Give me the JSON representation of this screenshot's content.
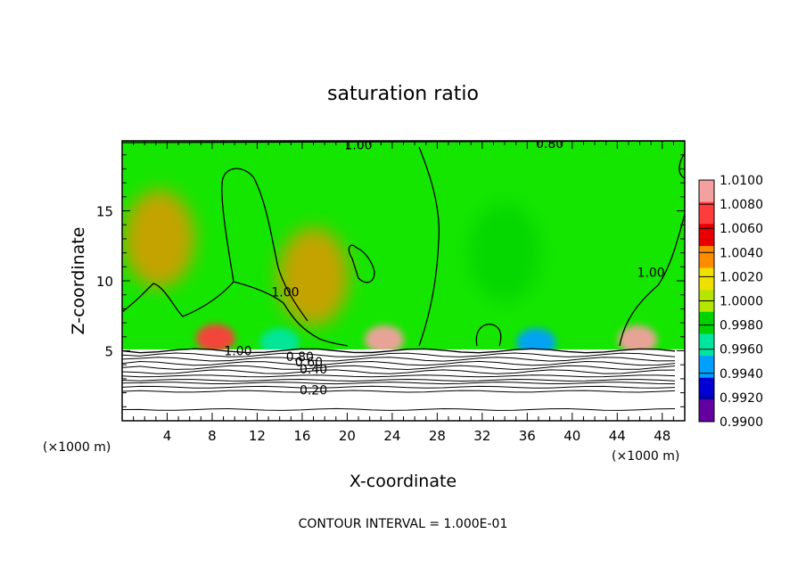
{
  "chart_data": {
    "type": "heatmap",
    "title": "saturation ratio",
    "xlabel": "X-coordinate",
    "ylabel": "Z-coordinate",
    "x_unit_left": "(×1000 m)",
    "x_unit_right": "(×1000 m)",
    "xlim": [
      0,
      50
    ],
    "ylim": [
      0,
      20
    ],
    "x_ticks": [
      4,
      8,
      12,
      16,
      20,
      24,
      28,
      32,
      36,
      40,
      44,
      48
    ],
    "y_ticks": [
      5,
      10,
      15
    ],
    "footnote": "CONTOUR INTERVAL = 1.000E-01",
    "colorbar": {
      "levels": [
        "1.0100",
        "1.0080",
        "1.0060",
        "1.0040",
        "1.0020",
        "1.0000",
        "0.9980",
        "0.9960",
        "0.9940",
        "0.9920",
        "0.9900"
      ],
      "colors": [
        "#f4a0a0",
        "#ff3c3c",
        "#e80000",
        "#ff8c00",
        "#f0e000",
        "#b4e600",
        "#00d200",
        "#00e6a0",
        "#00a0ff",
        "#0000d2",
        "#6400a0"
      ]
    },
    "background_color": "#14e600",
    "contour_labels": [
      {
        "text": "1.00",
        "x": 21.0,
        "y": 19.7
      },
      {
        "text": "0.80",
        "x": 38.0,
        "y": 19.8
      },
      {
        "text": "1.00",
        "x": 14.5,
        "y": 9.2
      },
      {
        "text": "1.00",
        "x": 47.0,
        "y": 10.6
      },
      {
        "text": "1.00",
        "x": 10.3,
        "y": 5.0
      },
      {
        "text": "0.80",
        "x": 15.8,
        "y": 4.6
      },
      {
        "text": "0.60",
        "x": 16.6,
        "y": 4.2
      },
      {
        "text": "0.40",
        "x": 17.0,
        "y": 3.7
      },
      {
        "text": "0.20",
        "x": 17.0,
        "y": 2.2
      }
    ],
    "hotspots": [
      {
        "x": 8.3,
        "y": 5.9,
        "value": 1.006
      },
      {
        "x": 23.3,
        "y": 5.8,
        "value": 1.008
      },
      {
        "x": 45.8,
        "y": 5.8,
        "value": 1.008
      },
      {
        "x": 17.0,
        "y": 10.3,
        "value": 1.003
      },
      {
        "x": 3.3,
        "y": 13.0,
        "value": 1.002
      },
      {
        "x": 36.8,
        "y": 5.6,
        "value": 0.993
      },
      {
        "x": 14.0,
        "y": 5.6,
        "value": 0.994
      },
      {
        "x": 34.0,
        "y": 12.0,
        "value": 0.9975
      }
    ],
    "layer_lines_z": [
      5.0,
      4.7,
      4.4,
      4.1,
      3.8,
      3.5,
      3.2,
      2.9,
      2.7,
      2.4,
      2.1,
      0.8
    ]
  }
}
